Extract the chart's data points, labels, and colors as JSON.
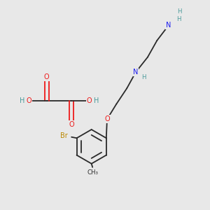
{
  "bg_color": "#e8e8e8",
  "bond_color": "#2a2a2a",
  "bond_lw": 1.3,
  "atom_colors": {
    "C": "#2a2a2a",
    "H": "#4a9a9a",
    "N": "#1a1aee",
    "O": "#ee1a1a",
    "Br": "#bb8800"
  },
  "font_size": 7.0,
  "font_size_small": 6.2
}
